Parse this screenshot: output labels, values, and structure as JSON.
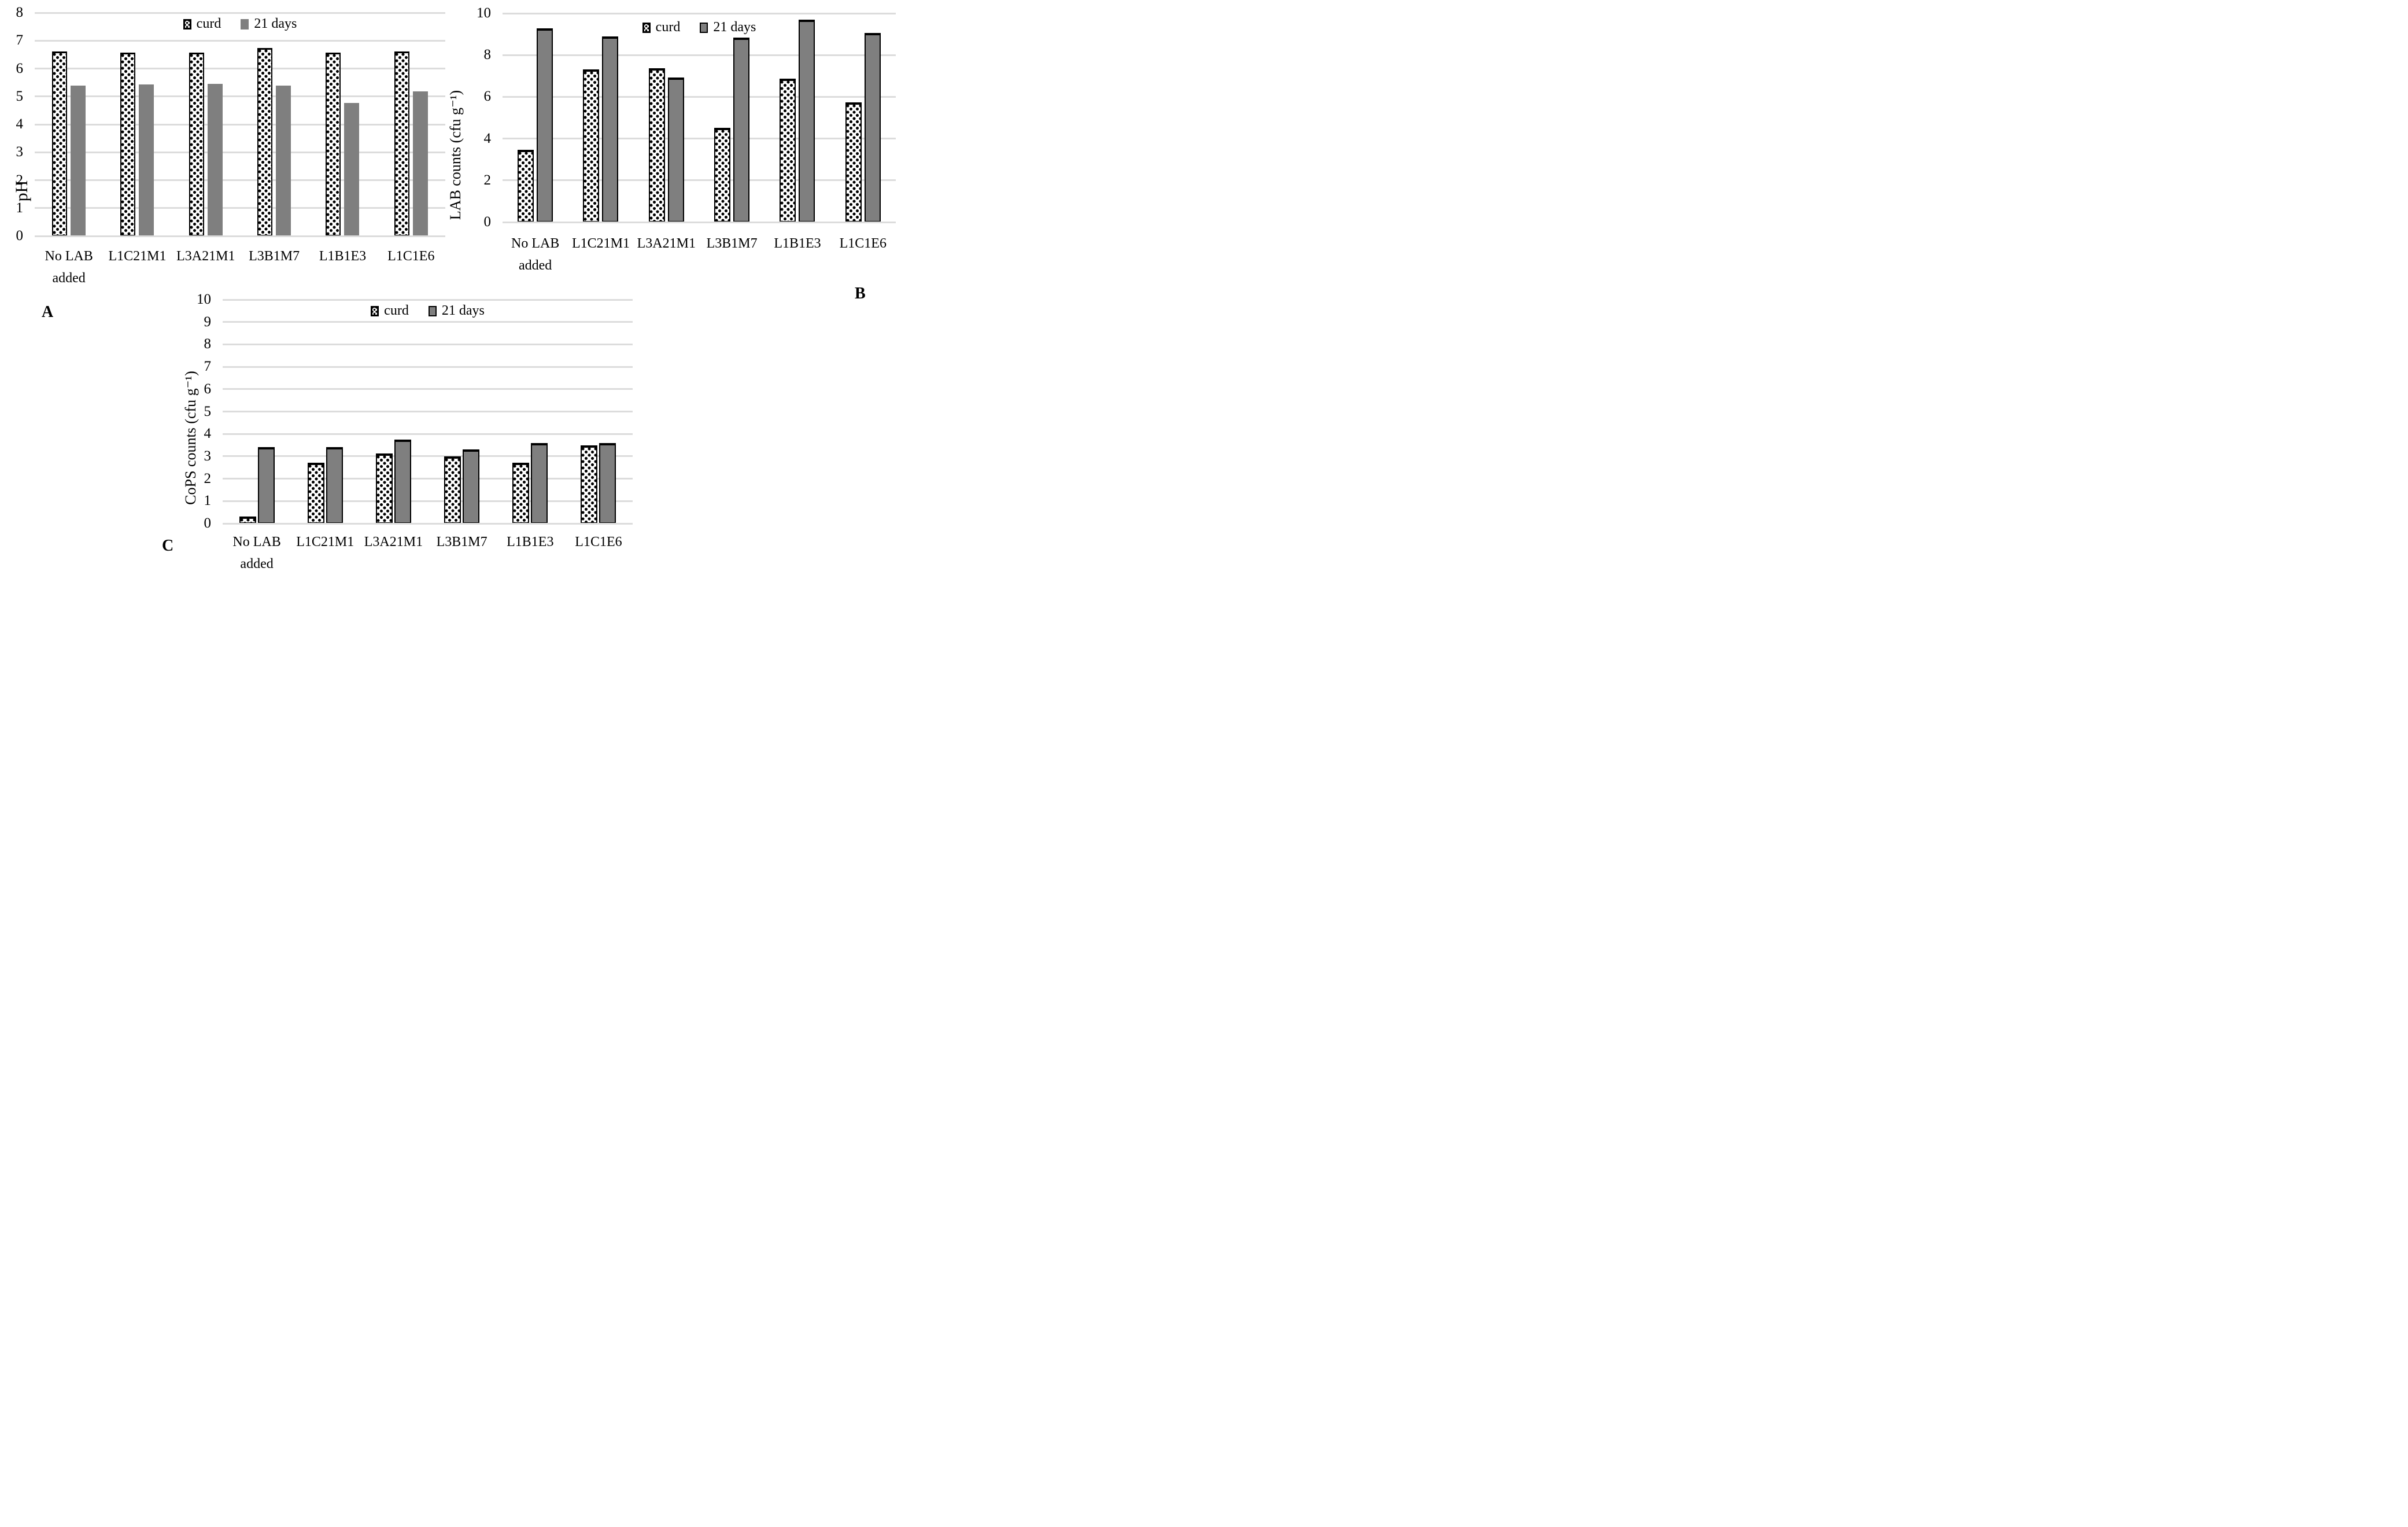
{
  "series_labels": [
    "curd",
    "21 days"
  ],
  "colors": {
    "bar_gray": "#7f7f7f",
    "bar_outline": "#000000",
    "gridline": "#dcdcdc",
    "curd_fill": "#ffffff"
  },
  "chart_data": [
    {
      "panel_label": "A",
      "type": "bar",
      "title": "",
      "xlabel": "",
      "ylabel": "pH",
      "ylim": [
        0,
        8
      ],
      "yticks": [
        0,
        1,
        2,
        3,
        4,
        5,
        6,
        7,
        8
      ],
      "grid": true,
      "legend_position": "top-center",
      "categories": [
        "No LAB\nadded",
        "L1C21M1",
        "L3A21M1",
        "L3B1M7",
        "L1B1E3",
        "L1C1E6"
      ],
      "series": [
        {
          "name": "curd",
          "values": [
            6.62,
            6.57,
            6.57,
            6.73,
            6.58,
            6.62
          ]
        },
        {
          "name": "21 days",
          "values": [
            5.38,
            5.43,
            5.46,
            5.38,
            4.76,
            5.18
          ]
        }
      ]
    },
    {
      "panel_label": "B",
      "type": "bar",
      "title": "",
      "xlabel": "",
      "ylabel": "LAB counts (cfu g⁻¹)",
      "ylim": [
        0,
        10
      ],
      "yticks": [
        0,
        2,
        4,
        6,
        8,
        10
      ],
      "grid": true,
      "legend_position": "top-center",
      "categories": [
        "No LAB\nadded",
        "L1C21M1",
        "L3A21M1",
        "L3B1M7",
        "L1B1E3",
        "L1C1E6"
      ],
      "series": [
        {
          "name": "curd",
          "values": [
            3.47,
            7.3,
            7.37,
            4.51,
            6.88,
            5.73
          ]
        },
        {
          "name": "21 days",
          "values": [
            9.28,
            8.9,
            6.93,
            8.83,
            9.7,
            9.06
          ]
        }
      ]
    },
    {
      "panel_label": "C",
      "type": "bar",
      "title": "",
      "xlabel": "",
      "ylabel": "CoPS counts (cfu g⁻¹)",
      "ylim": [
        0,
        10
      ],
      "yticks": [
        0,
        1,
        2,
        3,
        4,
        5,
        6,
        7,
        8,
        9,
        10
      ],
      "grid": true,
      "legend_position": "top-center",
      "categories": [
        "No LAB\nadded",
        "L1C21M1",
        "L3A21M1",
        "L3B1M7",
        "L1B1E3",
        "L1C1E6"
      ],
      "series": [
        {
          "name": "curd",
          "values": [
            0.32,
            2.72,
            3.12,
            3.0,
            2.72,
            3.48
          ]
        },
        {
          "name": "21 days",
          "values": [
            3.41,
            3.4,
            3.74,
            3.3,
            3.6,
            3.6
          ]
        }
      ]
    }
  ]
}
